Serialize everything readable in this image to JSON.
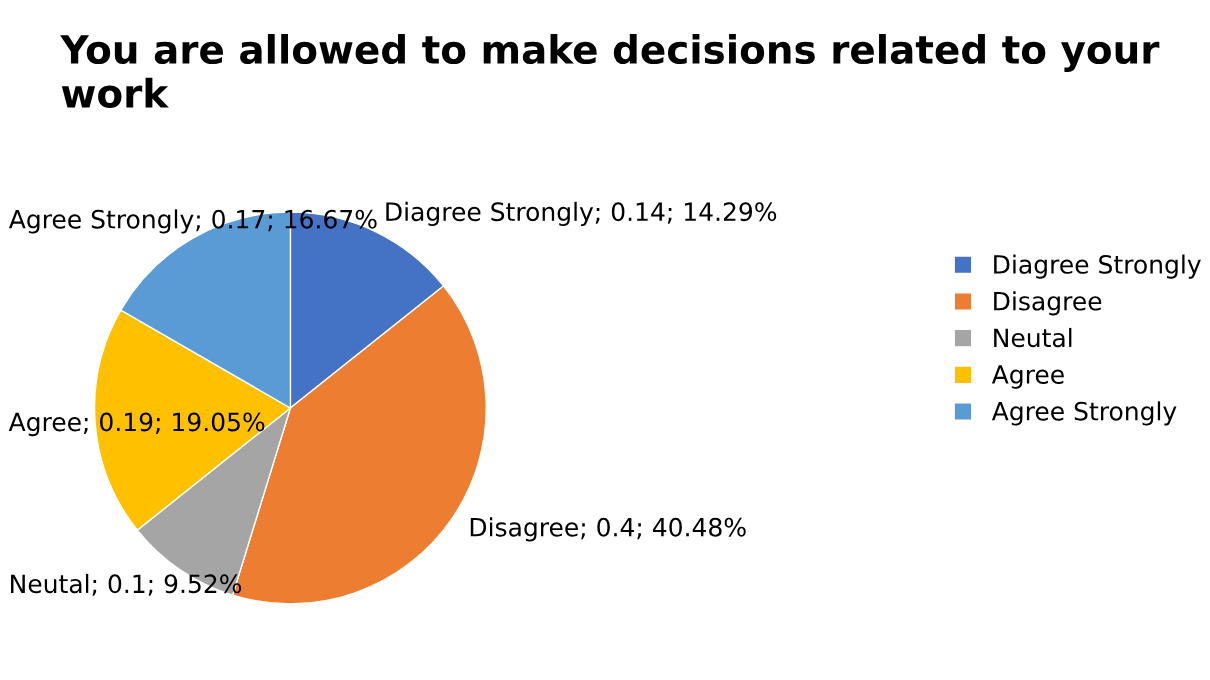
{
  "chart_data": {
    "type": "pie",
    "title": "You are allowed to make decisions related to your work",
    "categories": [
      "Diagree Strongly",
      "Disagree",
      "Neutal",
      "Agree",
      "Agree Strongly"
    ],
    "values": [
      14.29,
      40.48,
      9.52,
      19.05,
      16.67
    ],
    "colors": [
      "#4472c4",
      "#ed7d31",
      "#a5a5a5",
      "#ffc000",
      "#5b9bd5"
    ],
    "value_labels": [
      "Diagree Strongly; 0.14; 14.29%",
      "Disagree; 0.4; 40.48%",
      "Neutal; 0.1; 9.52%",
      "Agree; 0.19; 19.05%",
      "Agree Strongly; 0.17; 16.67%"
    ],
    "legend": "right"
  }
}
